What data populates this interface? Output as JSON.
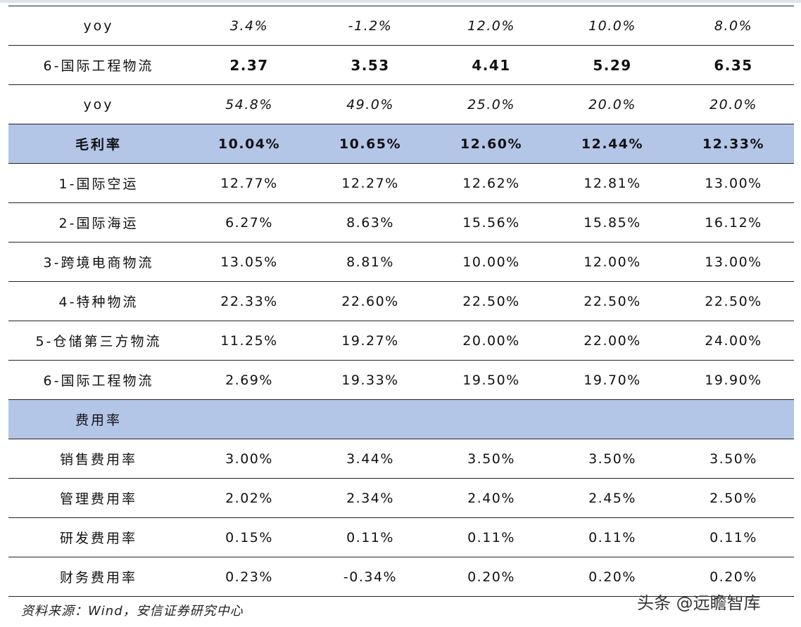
{
  "table": {
    "rows": [
      [
        "yoy",
        "3.4%",
        "-1.2%",
        "12.0%",
        "10.0%",
        "8.0%"
      ],
      [
        "6-国际工程物流",
        "2.37",
        "3.53",
        "4.41",
        "5.29",
        "6.35"
      ],
      [
        "yoy",
        "54.8%",
        "49.0%",
        "25.0%",
        "20.0%",
        "20.0%"
      ],
      [
        "毛利率",
        "10.04%",
        "10.65%",
        "12.60%",
        "12.44%",
        "12.33%"
      ],
      [
        "1-国际空运",
        "12.77%",
        "12.27%",
        "12.62%",
        "12.81%",
        "13.00%"
      ],
      [
        "2-国际海运",
        "6.27%",
        "8.63%",
        "15.56%",
        "15.85%",
        "16.12%"
      ],
      [
        "3-跨境电商物流",
        "13.05%",
        "8.81%",
        "10.00%",
        "12.00%",
        "13.00%"
      ],
      [
        "4-特种物流",
        "22.33%",
        "22.60%",
        "22.50%",
        "22.50%",
        "22.50%"
      ],
      [
        "5-仓储第三方物流",
        "11.25%",
        "19.27%",
        "20.00%",
        "22.00%",
        "24.00%"
      ],
      [
        "6-国际工程物流",
        "2.69%",
        "19.33%",
        "19.50%",
        "19.70%",
        "19.90%"
      ],
      [
        "费用率"
      ],
      [
        "销售费用率",
        "3.00%",
        "3.44%",
        "3.50%",
        "3.50%",
        "3.50%"
      ],
      [
        "管理费用率",
        "2.02%",
        "2.34%",
        "2.40%",
        "2.45%",
        "2.50%"
      ],
      [
        "研发费用率",
        "0.15%",
        "0.11%",
        "0.11%",
        "0.11%",
        "0.11%"
      ],
      [
        "财务费用率",
        "0.23%",
        "-0.34%",
        "0.20%",
        "0.20%",
        "0.20%"
      ]
    ]
  },
  "source": "资料来源：Wind，安信证券研究中心",
  "watermark": "头条 @远瞻智库"
}
